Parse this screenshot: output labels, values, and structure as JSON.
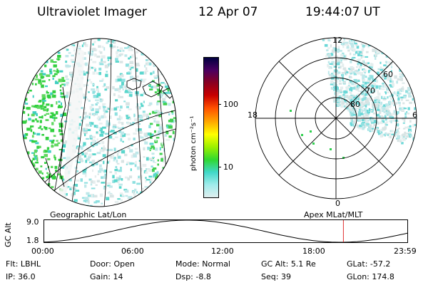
{
  "header": {
    "title": "Ultraviolet Imager",
    "date": "12 Apr 07",
    "time": "19:44:07 UT"
  },
  "left_panel": {
    "caption": "Geographic Lat/Lon"
  },
  "right_panel": {
    "caption": "Apex MLat/MLT",
    "mlt_labels": {
      "top": "12",
      "bottom": "0",
      "left": "18",
      "right": "6"
    },
    "lat_labels": [
      "60",
      "70",
      "80"
    ]
  },
  "colorbar": {
    "unit_label": "photon cm⁻²s⁻¹",
    "ticks": [
      "100",
      "10"
    ],
    "colors": [
      "#000040",
      "#4b0060",
      "#8a0020",
      "#c80000",
      "#ff5000",
      "#ffa000",
      "#ffff00",
      "#9cf000",
      "#30d830",
      "#40d8c8",
      "#a0ecec",
      "#e0eeee"
    ]
  },
  "altitude_plot": {
    "ylabel": "GC Alt",
    "yticks": [
      "9.0",
      "1.8"
    ],
    "xticks": [
      "00:00",
      "06:00",
      "12:00",
      "18:00",
      "23:59"
    ],
    "marker_time": "19:44",
    "marker_color": "#e03030"
  },
  "status": {
    "row1": [
      {
        "label": "Flt:",
        "value": "LBHL"
      },
      {
        "label": "Door:",
        "value": "Open"
      },
      {
        "label": "Mode:",
        "value": "Normal"
      },
      {
        "label": "GC Alt:",
        "value": "5.1 Re"
      },
      {
        "label": "GLat:",
        "value": "-57.2"
      }
    ],
    "row2": [
      {
        "label": "IP:",
        "value": "36.0"
      },
      {
        "label": "Gain:",
        "value": "14"
      },
      {
        "label": "Dsp:",
        "value": "-8.8"
      },
      {
        "label": "Seq:",
        "value": "39"
      },
      {
        "label": "GLon:",
        "value": "174.8"
      }
    ]
  }
}
